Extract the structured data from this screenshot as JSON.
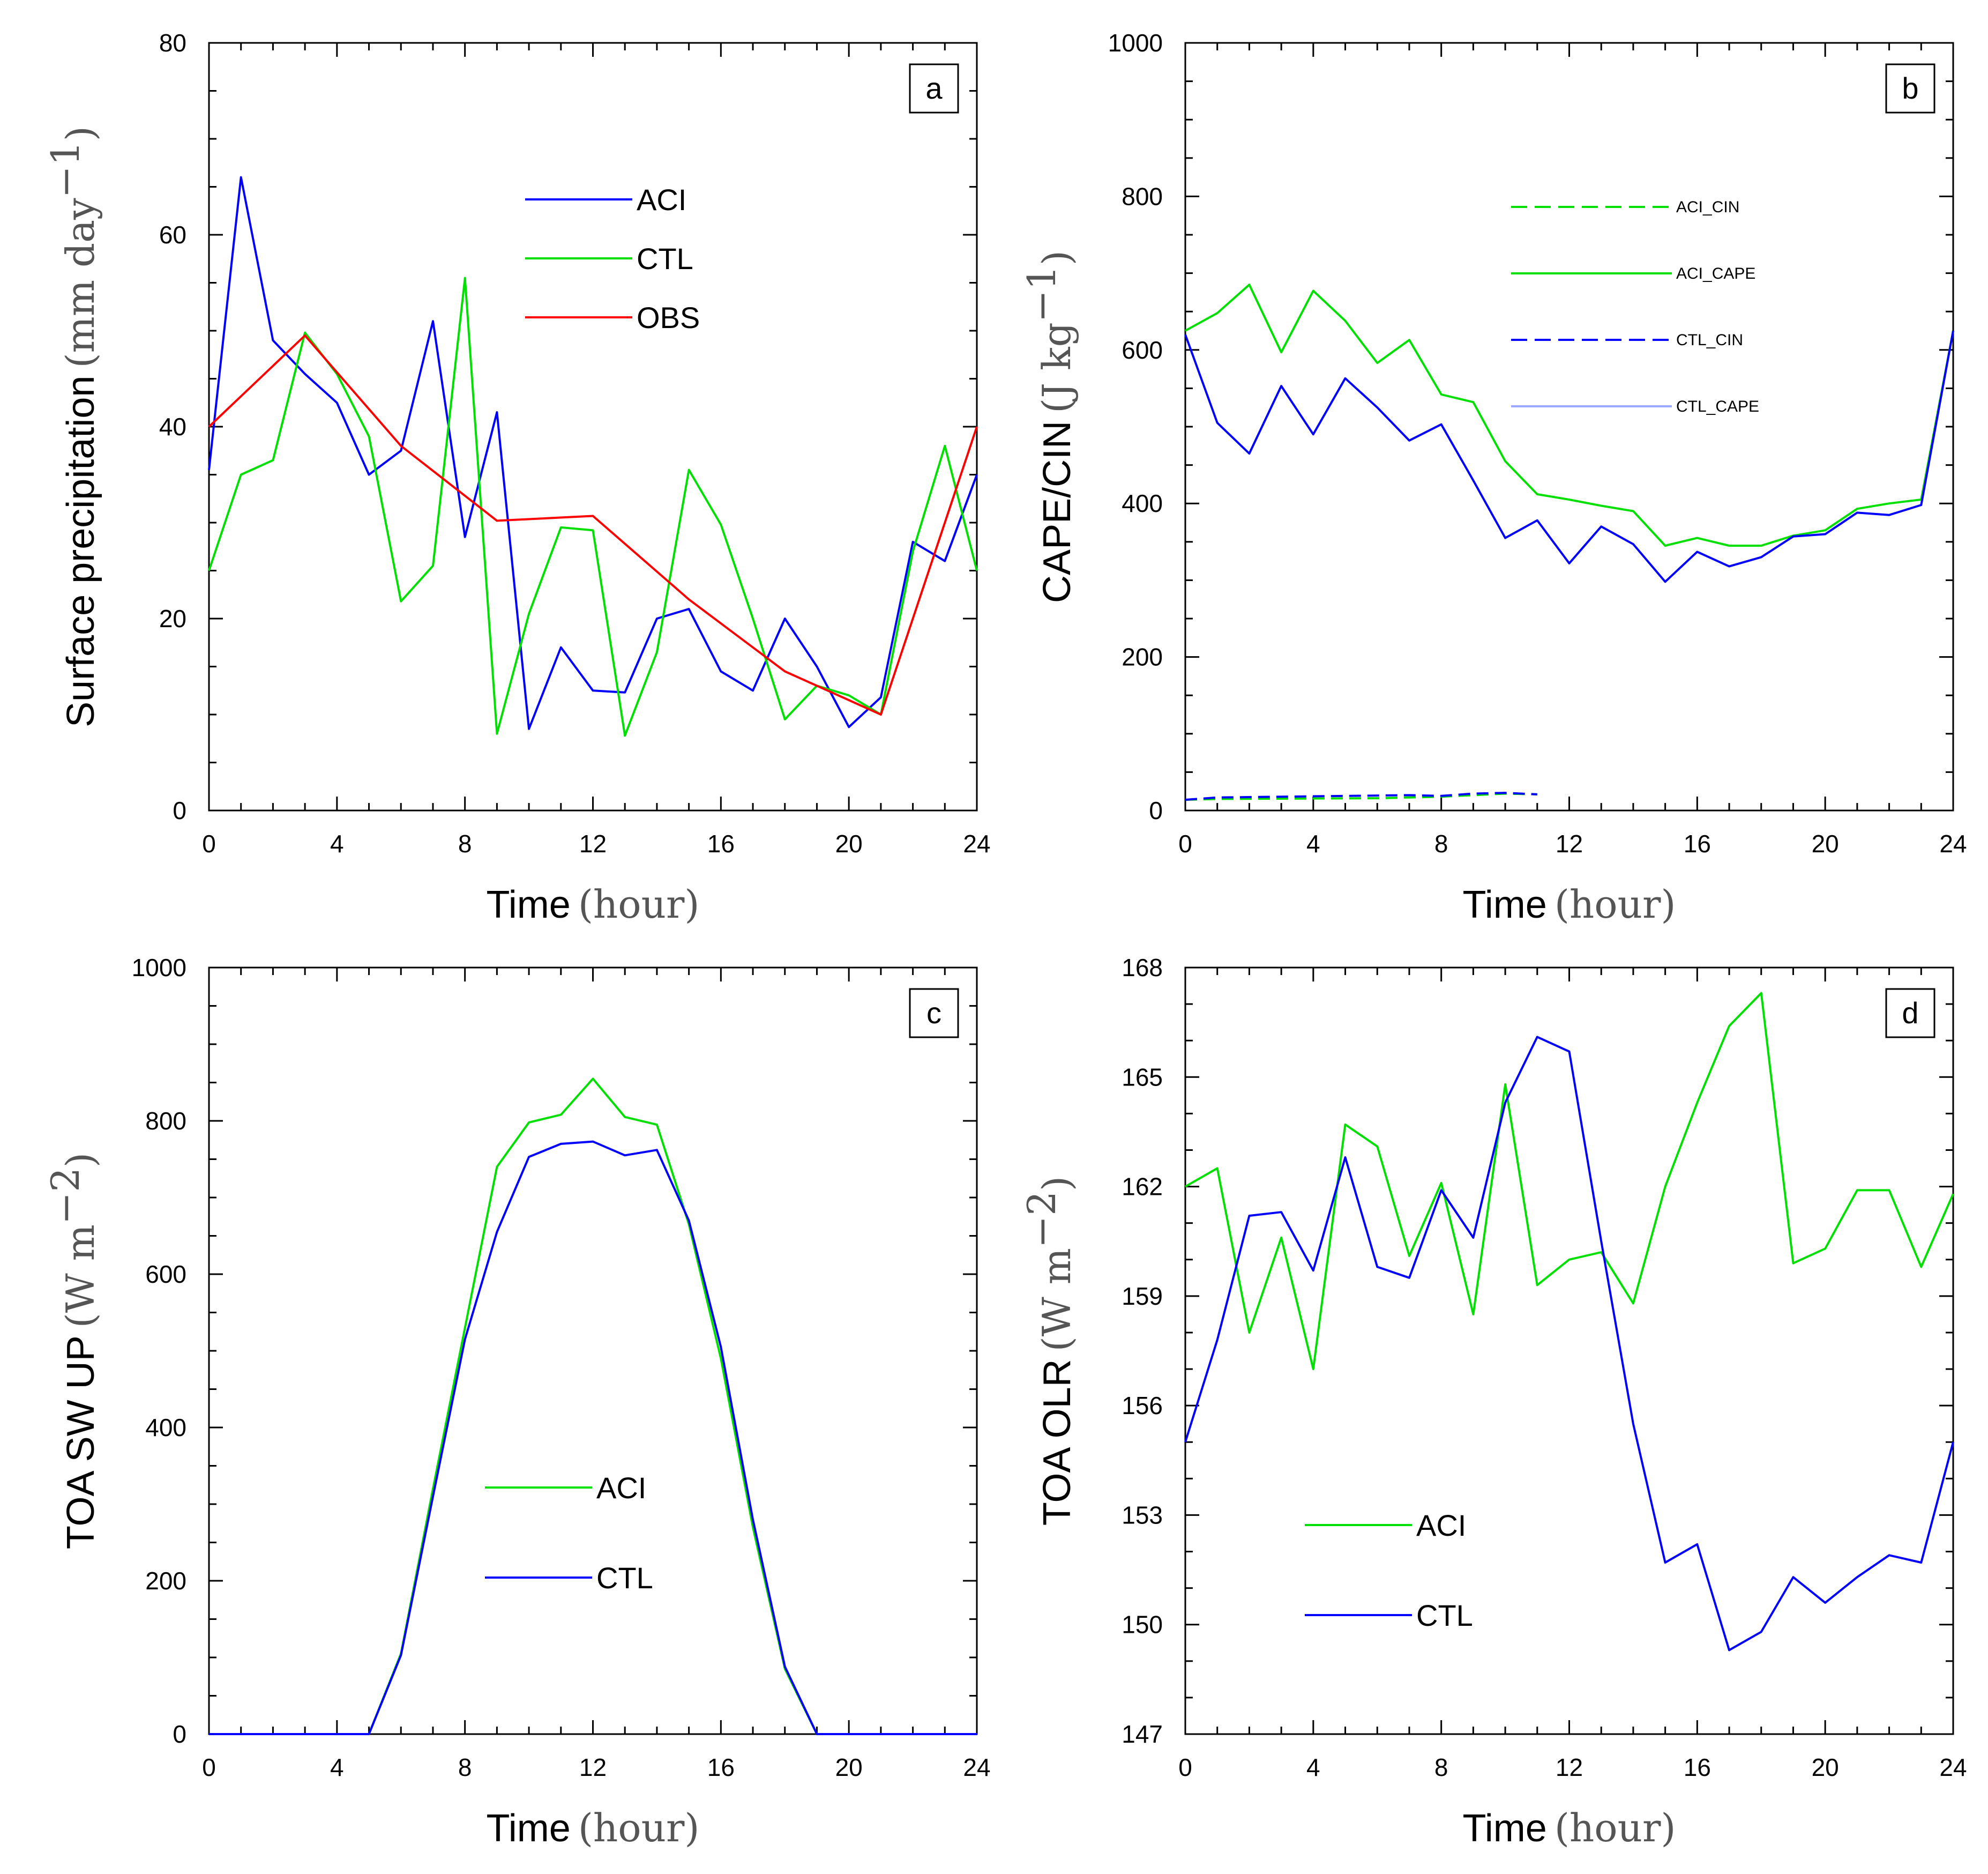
{
  "chart_data": [
    {
      "id": "a",
      "type": "line",
      "panel_label": "a",
      "title": "",
      "xlabel": "Time",
      "xunit": "hour",
      "ylabel": "Surface precipitation",
      "yunit": "mm  day",
      "yunit_exp": "−1",
      "xlim": [
        0,
        24
      ],
      "ylim": [
        0,
        80
      ],
      "xticks": [
        0,
        4,
        8,
        12,
        16,
        20,
        24
      ],
      "yticks": [
        0,
        20,
        40,
        60,
        80
      ],
      "legend_position": "upper-center",
      "series": [
        {
          "name": "ACI",
          "color": "#0000ff",
          "dash": "solid",
          "x": [
            0,
            1,
            2,
            3,
            4,
            5,
            6,
            7,
            8,
            9,
            10,
            11,
            12,
            13,
            14,
            15,
            16,
            17,
            18,
            19,
            20,
            21,
            22,
            23,
            24
          ],
          "values": [
            35.5,
            66,
            49,
            45.5,
            42.5,
            35,
            37.5,
            51,
            28.5,
            41.5,
            8.5,
            17,
            12.5,
            12.3,
            20,
            21,
            14.5,
            12.5,
            20,
            15,
            8.7,
            11.8,
            28,
            26,
            35
          ]
        },
        {
          "name": "CTL",
          "color": "#00e000",
          "dash": "solid",
          "x": [
            0,
            1,
            2,
            3,
            4,
            5,
            6,
            7,
            8,
            9,
            10,
            11,
            12,
            13,
            14,
            15,
            16,
            17,
            18,
            19,
            20,
            21,
            22,
            23,
            24
          ],
          "values": [
            25,
            35,
            36.5,
            49.8,
            45.5,
            39,
            21.8,
            25.5,
            55.5,
            8,
            20.5,
            29.5,
            29.2,
            7.8,
            16.5,
            35.5,
            29.8,
            20,
            9.5,
            13,
            12,
            10,
            27,
            38,
            25
          ]
        },
        {
          "name": "OBS",
          "color": "#ff0000",
          "dash": "solid",
          "x": [
            0,
            3,
            6,
            9,
            12,
            15,
            18,
            21,
            24
          ],
          "values": [
            40,
            49.5,
            38,
            30.2,
            30.7,
            22,
            14.5,
            10,
            40
          ]
        }
      ]
    },
    {
      "id": "b",
      "type": "line",
      "panel_label": "b",
      "title": "",
      "xlabel": "Time",
      "xunit": "hour",
      "ylabel": "CAPE/CIN",
      "yunit": "J  kg",
      "yunit_exp": "−1",
      "xlim": [
        0,
        24
      ],
      "ylim": [
        0,
        1000
      ],
      "xticks": [
        0,
        4,
        8,
        12,
        16,
        20,
        24
      ],
      "yticks": [
        0,
        200,
        400,
        600,
        800,
        1000
      ],
      "legend_position": "upper-right",
      "series": [
        {
          "name": "ACI_CIN",
          "color": "#00e000",
          "dash": "dashed",
          "x": [
            0,
            1,
            6,
            7,
            8,
            9,
            10,
            11
          ],
          "values": [
            14,
            15,
            16,
            17,
            18,
            20,
            22,
            21
          ]
        },
        {
          "name": "ACI_CAPE",
          "color": "#00e000",
          "dash": "solid",
          "x": [
            0,
            1,
            2,
            3,
            4,
            5,
            6,
            7,
            8,
            9,
            10,
            11,
            12,
            13,
            14,
            15,
            16,
            17,
            18,
            19,
            20,
            21,
            22,
            23,
            24
          ],
          "values": [
            625,
            648,
            685,
            597,
            677,
            638,
            583,
            613,
            542,
            532,
            455,
            412,
            405,
            397,
            390,
            345,
            355,
            345,
            345,
            358,
            365,
            393,
            400,
            405,
            625
          ]
        },
        {
          "name": "CTL_CIN",
          "color": "#0000ff",
          "dash": "dashed",
          "x": [
            0,
            1,
            7,
            8,
            9,
            10,
            11
          ],
          "values": [
            14,
            17,
            20,
            19,
            22,
            23,
            21
          ]
        },
        {
          "name": "CTL_CAPE",
          "color": "#0000ff",
          "dash": "solid",
          "x": [
            0,
            1,
            2,
            3,
            4,
            5,
            6,
            7,
            8,
            9,
            10,
            11,
            12,
            13,
            14,
            15,
            16,
            17,
            18,
            19,
            20,
            21,
            22,
            23,
            24
          ],
          "values": [
            620,
            505,
            465,
            553,
            490,
            563,
            525,
            482,
            503,
            430,
            355,
            378,
            322,
            370,
            347,
            298,
            337,
            318,
            330,
            357,
            360,
            388,
            385,
            398,
            625
          ]
        }
      ],
      "legend_colors": {
        "ACI_CIN": "#00e000",
        "ACI_CAPE": "#00e000",
        "CTL_CIN": "#0000ff",
        "CTL_CAPE": "#9aa8ff"
      }
    },
    {
      "id": "c",
      "type": "line",
      "panel_label": "c",
      "title": "",
      "xlabel": "Time",
      "xunit": "hour",
      "ylabel": "TOA SW UP",
      "yunit": "W  m",
      "yunit_exp": "−2",
      "xlim": [
        0,
        24
      ],
      "ylim": [
        0,
        1000
      ],
      "xticks": [
        0,
        4,
        8,
        12,
        16,
        20,
        24
      ],
      "yticks": [
        0,
        200,
        400,
        600,
        800,
        1000
      ],
      "legend_position": "lower-center",
      "series": [
        {
          "name": "ACI",
          "color": "#00e000",
          "dash": "solid",
          "x": [
            0,
            1,
            2,
            3,
            4,
            5,
            6,
            7,
            8,
            9,
            10,
            11,
            12,
            13,
            14,
            15,
            16,
            17,
            18,
            19,
            20,
            21,
            22,
            23,
            24
          ],
          "values": [
            0,
            0,
            0,
            0,
            0,
            0,
            105,
            320,
            530,
            740,
            798,
            808,
            855,
            805,
            795,
            665,
            490,
            270,
            85,
            0,
            0,
            0,
            0,
            0,
            0
          ]
        },
        {
          "name": "CTL",
          "color": "#0000ff",
          "dash": "solid",
          "x": [
            0,
            1,
            2,
            3,
            4,
            5,
            6,
            7,
            8,
            9,
            10,
            11,
            12,
            13,
            14,
            15,
            16,
            17,
            18,
            19,
            20,
            21,
            22,
            23,
            24
          ],
          "values": [
            0,
            0,
            0,
            0,
            0,
            0,
            103,
            310,
            515,
            655,
            753,
            770,
            773,
            755,
            762,
            670,
            505,
            280,
            88,
            0,
            0,
            0,
            0,
            0,
            0
          ]
        }
      ]
    },
    {
      "id": "d",
      "type": "line",
      "panel_label": "d",
      "title": "",
      "xlabel": "Time",
      "xunit": "hour",
      "ylabel": "TOA OLR",
      "yunit": "W  m",
      "yunit_exp": "−2",
      "xlim": [
        0,
        24
      ],
      "ylim": [
        147,
        168
      ],
      "xticks": [
        0,
        4,
        8,
        12,
        16,
        20,
        24
      ],
      "yticks": [
        147,
        150,
        153,
        156,
        159,
        162,
        165,
        168
      ],
      "legend_position": "lower-left",
      "series": [
        {
          "name": "ACI",
          "color": "#00e000",
          "dash": "solid",
          "x": [
            0,
            1,
            2,
            3,
            4,
            5,
            6,
            7,
            8,
            9,
            10,
            11,
            12,
            13,
            14,
            15,
            16,
            17,
            18,
            19,
            20,
            21,
            22,
            23,
            24
          ],
          "values": [
            162,
            162.5,
            158,
            160.6,
            157,
            163.7,
            163.1,
            160.1,
            162.1,
            158.5,
            164.8,
            159.3,
            160,
            160.2,
            158.8,
            162,
            164.3,
            166.4,
            167.3,
            159.9,
            160.3,
            161.9,
            161.9,
            159.8,
            161.8
          ]
        },
        {
          "name": "CTL",
          "color": "#0000ff",
          "dash": "solid",
          "x": [
            0,
            1,
            2,
            3,
            4,
            5,
            6,
            7,
            8,
            9,
            10,
            11,
            12,
            13,
            14,
            15,
            16,
            17,
            18,
            19,
            20,
            21,
            22,
            23,
            24
          ],
          "values": [
            155,
            157.8,
            161.2,
            161.3,
            159.7,
            162.8,
            159.8,
            159.5,
            161.9,
            160.6,
            164.3,
            166.1,
            165.7,
            160.5,
            155.5,
            151.7,
            152.2,
            149.3,
            149.8,
            151.3,
            150.6,
            151.3,
            151.9,
            151.7,
            155
          ]
        }
      ]
    }
  ]
}
